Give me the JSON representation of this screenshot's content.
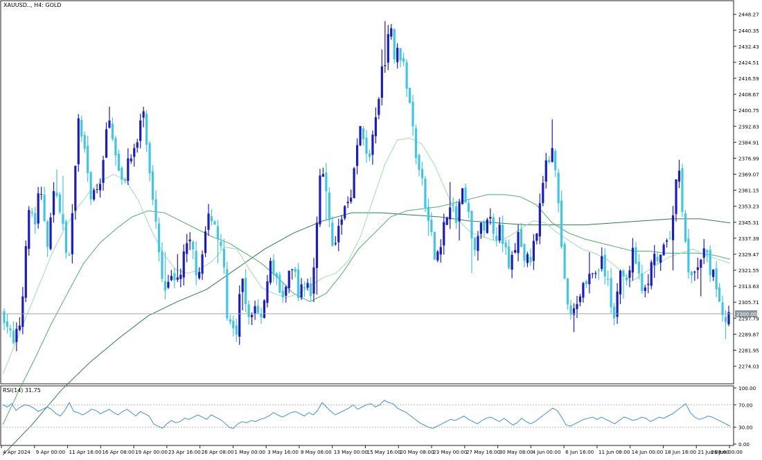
{
  "header": {
    "symbol_label": "XAUUSD.., H4:  GOLD"
  },
  "current_price_label": "2300.00",
  "rsi": {
    "label": "RSI(14) 31.75",
    "levels": [
      "100.00",
      "70.00",
      "30.00",
      "0.00"
    ]
  },
  "colors": {
    "bull_candle": "#1a1acd",
    "bear_candle": "#3ec6e6",
    "ma_fast": "#9fdcb1",
    "ma_mid": "#4caf6a",
    "ma_slow": "#2e7d4a",
    "rsi_line": "#3d8fe0",
    "price_line": "#9aa3ad"
  },
  "chart_data": {
    "type": "candlestick",
    "symbol": "XAUUSD..",
    "timeframe": "H4",
    "title": "XAUUSD.., H4:  GOLD",
    "ylim": [
      2266,
      2454
    ],
    "y_ticks": [
      "2448.27",
      "2440.35",
      "2432.43",
      "2424.51",
      "2416.59",
      "2408.67",
      "2400.75",
      "2392.83",
      "2384.91",
      "2376.99",
      "2369.07",
      "2361.15",
      "2353.23",
      "2345.31",
      "2337.39",
      "2329.47",
      "2321.55",
      "2313.63",
      "2305.71",
      "2297.79",
      "2289.87",
      "2281.95",
      "2274.03"
    ],
    "x_ticks": [
      "4 Apr 2024",
      "9 Apr 00:00",
      "11 Apr 16:00",
      "16 Apr 08:00",
      "19 Apr 00:00",
      "23 Apr 16:00",
      "26 Apr 08:00",
      "1 May 00:00",
      "3 May 16:00",
      "8 May 08:00",
      "13 May 00:00",
      "15 May 16:00",
      "20 May 08:00",
      "23 May 00:00",
      "27 May 16:00",
      "30 May 08:00",
      "4 Jun 00:00",
      "6 Jun 16:00",
      "11 Jun 08:00",
      "14 Jun 00:00",
      "18 Jun 16:00",
      "21 Jun 08:00",
      "26 Jun 00:00"
    ],
    "close_path": [
      2300,
      2293,
      2283,
      2290,
      2300,
      2340,
      2352,
      2345,
      2360,
      2350,
      2335,
      2355,
      2363,
      2345,
      2335,
      2330,
      2365,
      2395,
      2385,
      2372,
      2355,
      2360,
      2370,
      2385,
      2395,
      2388,
      2370,
      2362,
      2375,
      2382,
      2378,
      2395,
      2398,
      2368,
      2350,
      2336,
      2318,
      2315,
      2324,
      2312,
      2320,
      2328,
      2335,
      2330,
      2320,
      2328,
      2340,
      2350,
      2345,
      2335,
      2322,
      2296,
      2290,
      2287,
      2320,
      2302,
      2296,
      2307,
      2298,
      2305,
      2318,
      2326,
      2315,
      2308,
      2312,
      2318,
      2322,
      2312,
      2310,
      2318,
      2308,
      2335,
      2375,
      2362,
      2347,
      2335,
      2337,
      2350,
      2355,
      2362,
      2375,
      2392,
      2385,
      2378,
      2386,
      2398,
      2420,
      2430,
      2442,
      2425,
      2432,
      2420,
      2410,
      2392,
      2376,
      2366,
      2352,
      2340,
      2328,
      2332,
      2343,
      2350,
      2352,
      2346,
      2360,
      2354,
      2345,
      2333,
      2338,
      2343,
      2348,
      2345,
      2340,
      2345,
      2332,
      2322,
      2330,
      2338,
      2332,
      2325,
      2328,
      2340,
      2355,
      2368,
      2378,
      2385,
      2365,
      2330,
      2310,
      2296,
      2303,
      2310,
      2316,
      2320,
      2318,
      2322,
      2325,
      2320,
      2305,
      2300,
      2322,
      2315,
      2320,
      2330,
      2327,
      2316,
      2310,
      2320,
      2326,
      2325,
      2330,
      2332,
      2345,
      2365,
      2368,
      2335,
      2320,
      2316,
      2325,
      2330,
      2328,
      2320,
      2315,
      2308,
      2297,
      2300
    ],
    "ma_fast_path": [
      2270,
      2285,
      2300,
      2315,
      2330,
      2342,
      2352,
      2360,
      2366,
      2369,
      2366,
      2356,
      2342,
      2330,
      2322,
      2320,
      2322,
      2326,
      2333,
      2332,
      2322,
      2313,
      2310,
      2308,
      2310,
      2314,
      2318,
      2320,
      2326,
      2338,
      2356,
      2374,
      2386,
      2387,
      2384,
      2374,
      2360,
      2346,
      2340,
      2338,
      2336,
      2338,
      2342,
      2346,
      2345,
      2340,
      2336,
      2332,
      2330,
      2327,
      2322,
      2316,
      2320,
      2324,
      2328,
      2330,
      2332,
      2329,
      2327,
      2325
    ],
    "ma_mid_path": [
      2245,
      2262,
      2278,
      2295,
      2310,
      2325,
      2335,
      2342,
      2348,
      2351,
      2350,
      2346,
      2342,
      2338,
      2335,
      2330,
      2325,
      2318,
      2310,
      2306,
      2310,
      2320,
      2332,
      2340,
      2348,
      2351,
      2352,
      2353,
      2355,
      2357,
      2359,
      2359,
      2358,
      2354,
      2345,
      2340,
      2337,
      2335,
      2333,
      2331,
      2331,
      2330,
      2330,
      2330,
      2329,
      2327
    ],
    "ma_slow_path": [
      2230,
      2245,
      2262,
      2276,
      2288,
      2299,
      2306,
      2312,
      2322,
      2332,
      2340,
      2346,
      2350,
      2350,
      2349,
      2348,
      2346,
      2345,
      2344,
      2344,
      2344,
      2345,
      2346,
      2347,
      2347,
      2345
    ],
    "rsi": {
      "ylim": [
        0,
        100
      ],
      "levels": [
        30,
        70
      ],
      "current": 31.75,
      "values": [
        70,
        66,
        72,
        60,
        66,
        70,
        68,
        64,
        58,
        62,
        66,
        62,
        54,
        50,
        60,
        74,
        58,
        56,
        52,
        56,
        62,
        60,
        54,
        58,
        62,
        56,
        52,
        58,
        62,
        56,
        50,
        58,
        54,
        50,
        36,
        32,
        28,
        36,
        42,
        38,
        40,
        46,
        44,
        48,
        52,
        48,
        44,
        52,
        48,
        44,
        38,
        30,
        28,
        36,
        40,
        38,
        42,
        40,
        44,
        46,
        50,
        56,
        52,
        48,
        52,
        56,
        58,
        54,
        50,
        56,
        52,
        60,
        74,
        66,
        58,
        52,
        56,
        60,
        64,
        70,
        62,
        66,
        70,
        72,
        66,
        70,
        78,
        74,
        72,
        64,
        60,
        56,
        50,
        44,
        38,
        34,
        30,
        28,
        32,
        36,
        40,
        44,
        42,
        46,
        50,
        44,
        40,
        36,
        42,
        46,
        48,
        44,
        40,
        46,
        40,
        34,
        38,
        46,
        40,
        36,
        40,
        46,
        52,
        58,
        64,
        60,
        48,
        34,
        32,
        36,
        40,
        44,
        46,
        48,
        44,
        48,
        44,
        40,
        36,
        42,
        48,
        46,
        42,
        44,
        48,
        46,
        40,
        44,
        48,
        46,
        50,
        54,
        60,
        66,
        72,
        56,
        48,
        44,
        46,
        50,
        48,
        44,
        40,
        36,
        31.75
      ]
    }
  }
}
